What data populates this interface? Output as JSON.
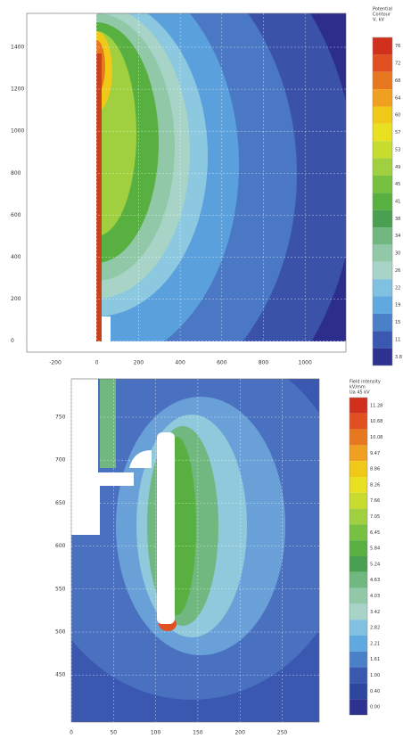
{
  "panels": [
    {
      "yticks": [
        "1400",
        "1200",
        "1000",
        "800",
        "600",
        "400",
        "200",
        "0"
      ],
      "xticks": [
        "-200",
        "0",
        "200",
        "400",
        "600",
        "800",
        "1000"
      ],
      "legend_title": [
        "Potential",
        "Contour",
        "V, kV"
      ],
      "legend_labels": [
        "76",
        "72",
        "68",
        "64",
        "60",
        "57",
        "53",
        "49",
        "45",
        "41",
        "38",
        "34",
        "30",
        "26",
        "22",
        "19",
        "15",
        "11",
        "3.8"
      ],
      "legend_colors": [
        "#d0301c",
        "#e05020",
        "#e87820",
        "#f0a020",
        "#f0c818",
        "#e8e020",
        "#c8dc30",
        "#a0d040",
        "#78c040",
        "#58b040",
        "#48a050",
        "#70b880",
        "#90c8a8",
        "#a8d4c8",
        "#80c0e0",
        "#60a8e0",
        "#4a80c8",
        "#3a58b0",
        "#2d3290"
      ]
    },
    {
      "yticks": [
        "750",
        "700",
        "650",
        "600",
        "550",
        "500",
        "450"
      ],
      "xticks": [
        "0",
        "50",
        "100",
        "150",
        "200",
        "250"
      ],
      "legend_title": [
        "Field intensity",
        "kV/mm",
        "Ua 45 kV"
      ],
      "legend_labels": [
        "11.28",
        "10.68",
        "10.08",
        "9.47",
        "8.86",
        "8.26",
        "7.66",
        "7.05",
        "6.45",
        "5.84",
        "5.24",
        "4.63",
        "4.03",
        "3.42",
        "2.82",
        "2.21",
        "1.61",
        "1.00",
        "0.40",
        "0.00"
      ],
      "legend_colors": [
        "#d0301c",
        "#e05020",
        "#e87820",
        "#f0a020",
        "#f0c818",
        "#e8e020",
        "#c8dc30",
        "#a0d040",
        "#78c040",
        "#58b040",
        "#48a050",
        "#70b880",
        "#90c8a8",
        "#a8d4c8",
        "#80c0e0",
        "#60a8e0",
        "#4a80c8",
        "#3a58b0",
        "#2f46a0",
        "#2d3290"
      ]
    }
  ]
}
